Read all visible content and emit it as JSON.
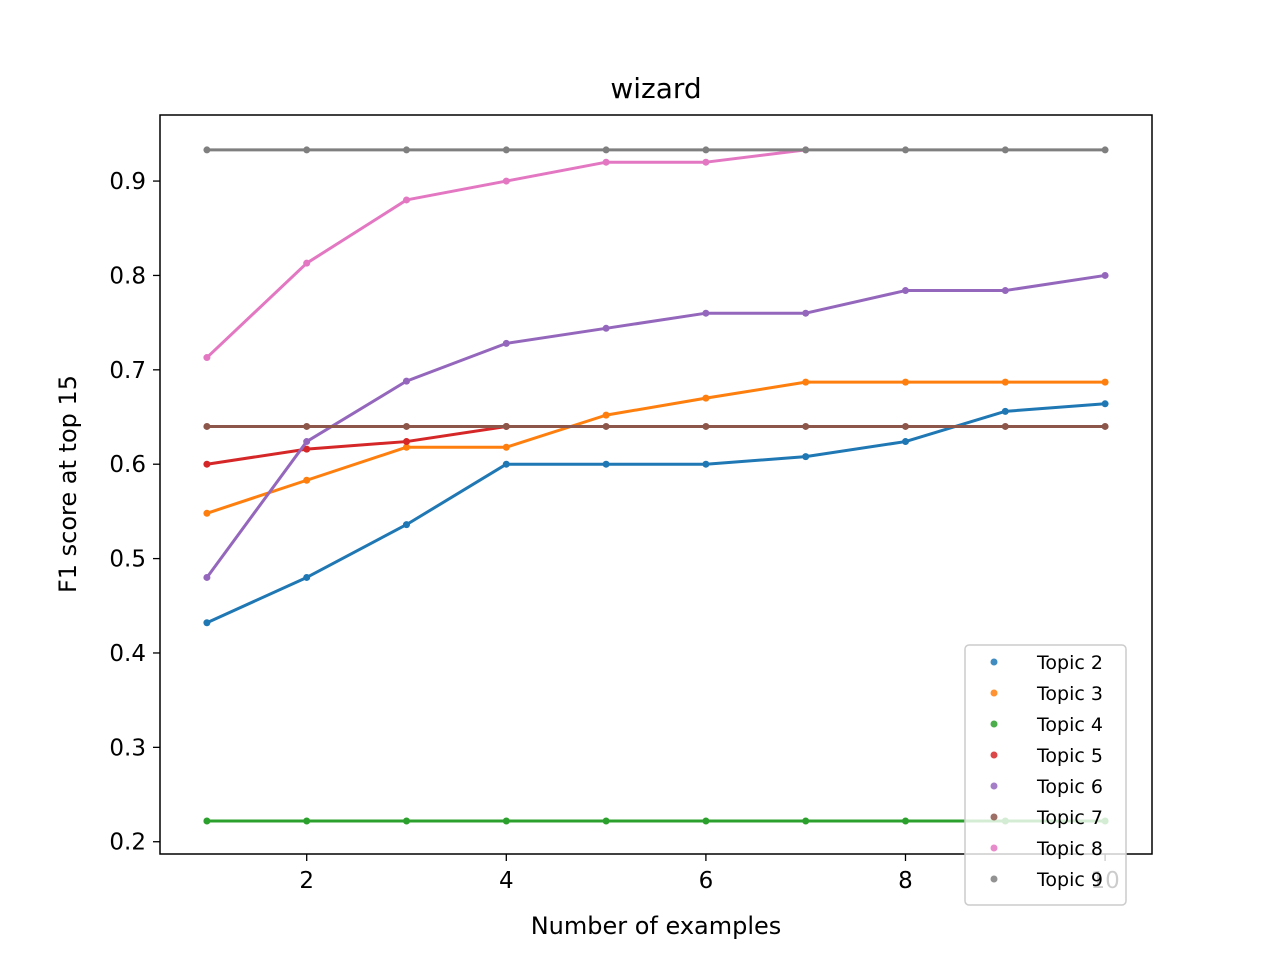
{
  "chart_data": {
    "type": "line",
    "title": "wizard",
    "xlabel": "Number of examples",
    "ylabel": "F1 score at top 15",
    "xlim": [
      0.53,
      10.47
    ],
    "ylim": [
      0.187,
      0.97
    ],
    "xticks": [
      2,
      4,
      6,
      8,
      10
    ],
    "yticks": [
      0.2,
      0.3,
      0.4,
      0.5,
      0.6,
      0.7,
      0.8,
      0.9
    ],
    "grid": false,
    "legend_position": "lower-right",
    "x": [
      1,
      2,
      3,
      4,
      5,
      6,
      7,
      8,
      9,
      10
    ],
    "series": [
      {
        "name": "Topic 2",
        "color": "#1f77b4",
        "x": [
          1,
          2,
          3,
          4,
          5,
          6,
          7,
          8,
          9,
          10
        ],
        "values": [
          0.432,
          0.48,
          0.536,
          0.6,
          0.6,
          0.6,
          0.608,
          0.624,
          0.656,
          0.664
        ]
      },
      {
        "name": "Topic 3",
        "color": "#ff7f0e",
        "x": [
          1,
          2,
          3,
          4,
          5,
          6,
          7,
          8,
          9,
          10
        ],
        "values": [
          0.548,
          0.583,
          0.618,
          0.618,
          0.652,
          0.67,
          0.687,
          0.687,
          0.687,
          0.687
        ]
      },
      {
        "name": "Topic 4",
        "color": "#2ca02c",
        "x": [
          1,
          2,
          3,
          4,
          5,
          6,
          7,
          8,
          9,
          10
        ],
        "values": [
          0.222,
          0.222,
          0.222,
          0.222,
          0.222,
          0.222,
          0.222,
          0.222,
          0.222,
          0.222
        ]
      },
      {
        "name": "Topic 5",
        "color": "#d62728",
        "x": [
          1,
          2,
          3,
          4
        ],
        "values": [
          0.6,
          0.616,
          0.624,
          0.64
        ]
      },
      {
        "name": "Topic 6",
        "color": "#9467bd",
        "x": [
          1,
          2,
          3,
          4,
          5,
          6,
          7,
          8,
          9,
          10
        ],
        "values": [
          0.48,
          0.624,
          0.688,
          0.728,
          0.744,
          0.76,
          0.76,
          0.784,
          0.784,
          0.8
        ]
      },
      {
        "name": "Topic 7",
        "color": "#8c564b",
        "x": [
          1,
          2,
          3,
          4,
          5,
          6,
          7,
          8,
          9,
          10
        ],
        "values": [
          0.64,
          0.64,
          0.64,
          0.64,
          0.64,
          0.64,
          0.64,
          0.64,
          0.64,
          0.64
        ]
      },
      {
        "name": "Topic 8",
        "color": "#e377c2",
        "x": [
          1,
          2,
          3,
          4,
          5,
          6,
          7
        ],
        "values": [
          0.713,
          0.813,
          0.88,
          0.9,
          0.92,
          0.92,
          0.933
        ]
      },
      {
        "name": "Topic 9",
        "color": "#7f7f7f",
        "x": [
          1,
          2,
          3,
          4,
          5,
          6,
          7,
          8,
          9,
          10
        ],
        "values": [
          0.933,
          0.933,
          0.933,
          0.933,
          0.933,
          0.933,
          0.933,
          0.933,
          0.933,
          0.933
        ]
      }
    ]
  }
}
